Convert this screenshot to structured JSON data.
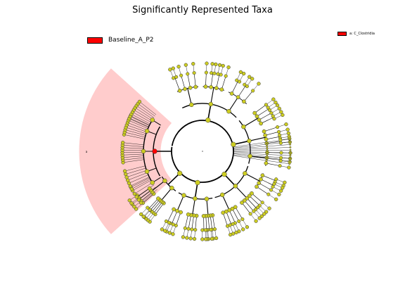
{
  "title": "Significantly Represented Taxa",
  "legend": {
    "main": {
      "label": "Baseline_A_P2",
      "color": "#ff0000"
    },
    "side": {
      "label": "a: C_Clostridia",
      "color": "#ff0000"
    }
  },
  "sector_marker": "a",
  "colors": {
    "highlight_sector": "#ffcccc",
    "node_default": "#cccc22",
    "node_enriched": "#ff0000",
    "line": "#000000"
  }
}
